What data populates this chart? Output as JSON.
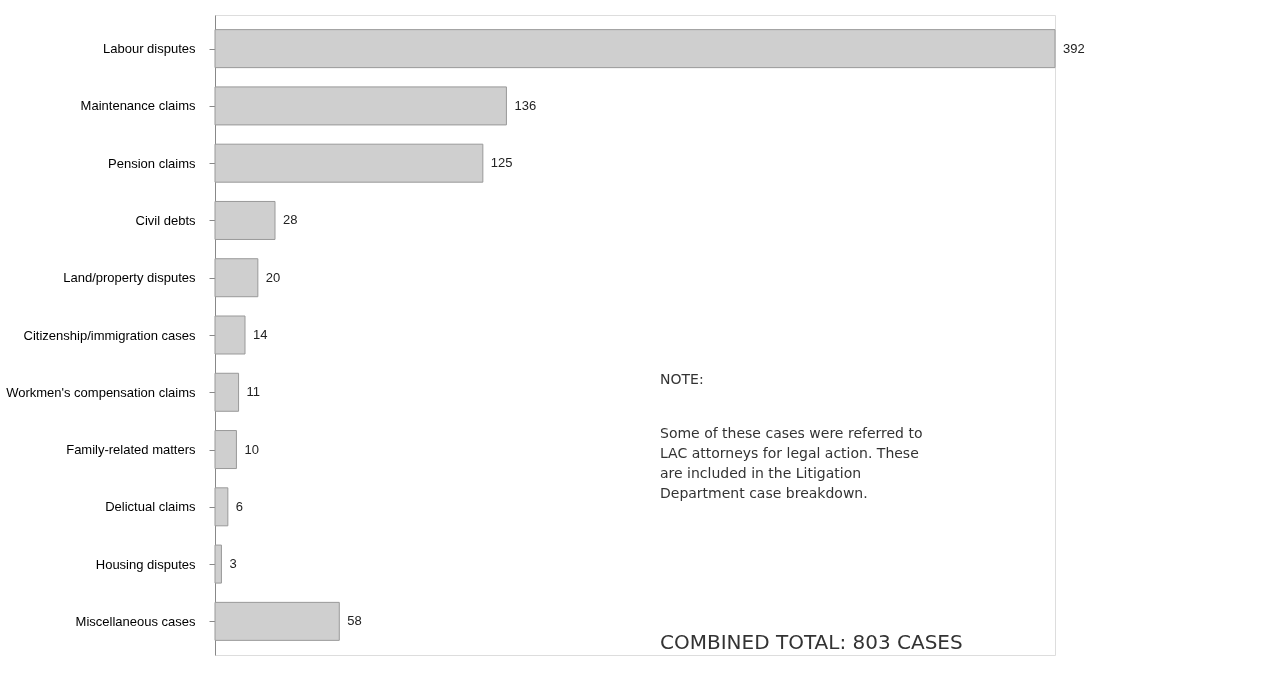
{
  "chart_data": {
    "type": "bar",
    "orientation": "horizontal",
    "data_labels": true,
    "categories": [
      "Labour disputes",
      "Maintenance claims",
      "Pension claims",
      "Civil debts",
      "Land/property disputes",
      "Citizenship/immigration cases",
      "Workmen's compensation claims",
      "Family-related matters",
      "Delictual claims",
      "Housing disputes",
      "Miscellaneous cases"
    ],
    "values": [
      392,
      136,
      125,
      28,
      20,
      14,
      11,
      10,
      6,
      3,
      58
    ],
    "color": "#cfcfcf",
    "annotations": [
      "NOTE:",
      "Some of these cases were referred to LAC attorneys for legal action. These are included in the Litigation Department case breakdown.",
      "COMBINED TOTAL: 803 CASES"
    ]
  }
}
